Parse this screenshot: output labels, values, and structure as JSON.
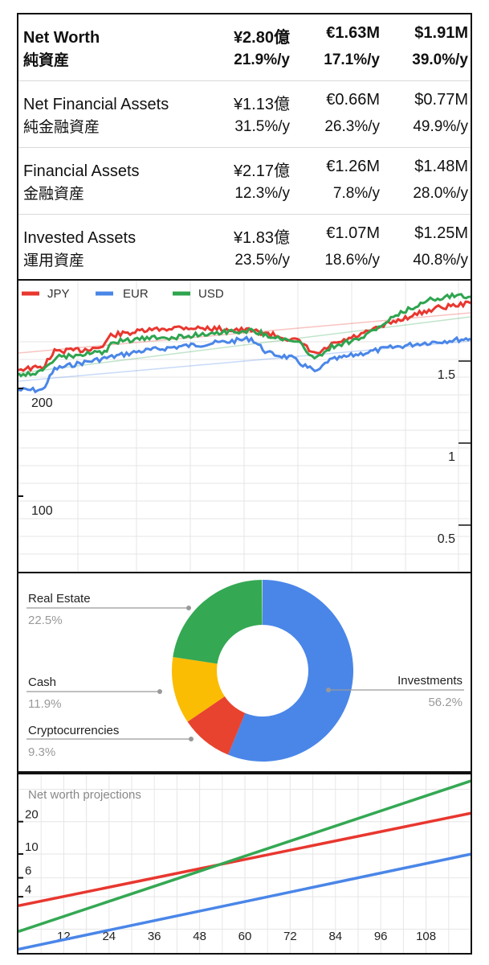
{
  "summary": {
    "rows": [
      {
        "en": "Net Worth",
        "ja": "純資産",
        "jpy": "¥2.80億",
        "eur": "€1.63M",
        "usd": "$1.91M",
        "jpy_pct": "21.9%/y",
        "eur_pct": "17.1%/y",
        "usd_pct": "39.0%/y"
      },
      {
        "en": "Net Financial Assets",
        "ja": "純金融資産",
        "jpy": "¥1.13億",
        "eur": "€0.66M",
        "usd": "$0.77M",
        "jpy_pct": "31.5%/y",
        "eur_pct": "26.3%/y",
        "usd_pct": "49.9%/y"
      },
      {
        "en": "Financial Assets",
        "ja": "金融資産",
        "jpy": "¥2.17億",
        "eur": "€1.26M",
        "usd": "$1.48M",
        "jpy_pct": "12.3%/y",
        "eur_pct": "7.8%/y",
        "usd_pct": "28.0%/y"
      },
      {
        "en": "Invested Assets",
        "ja": "運用資産",
        "jpy": "¥1.83億",
        "eur": "€1.07M",
        "usd": "$1.25M",
        "jpy_pct": "23.5%/y",
        "eur_pct": "18.6%/y",
        "usd_pct": "40.8%/y"
      }
    ]
  },
  "chart_data": [
    {
      "type": "line",
      "legend": [
        "JPY",
        "EUR",
        "USD"
      ],
      "legend_position": "top-left",
      "colors": {
        "JPY": "#e8372f",
        "EUR": "#4a86e8",
        "USD": "#2ea44f"
      },
      "left_axis_ticks": [
        "200",
        "100"
      ],
      "right_axis_ticks": [
        "1.5",
        "1",
        "0.5"
      ],
      "grid": true,
      "trendlines": true
    },
    {
      "type": "pie",
      "donut": true,
      "slices": [
        {
          "label": "Investments",
          "value": 56.2,
          "pct_text": "56.2%",
          "color": "#4a86e8"
        },
        {
          "label": "Cryptocurrencies",
          "value": 9.3,
          "pct_text": "9.3%",
          "color": "#e8432f"
        },
        {
          "label": "Cash",
          "value": 11.9,
          "pct_text": "11.9%",
          "color": "#fbbc04"
        },
        {
          "label": "Real Estate",
          "value": 22.5,
          "pct_text": "22.5%",
          "color": "#34a853"
        }
      ]
    },
    {
      "type": "line",
      "title": "Net worth projections",
      "x_ticks": [
        "12",
        "24",
        "36",
        "48",
        "60",
        "72",
        "84",
        "96",
        "108"
      ],
      "y_ticks": [
        "20",
        "10",
        "6",
        "4"
      ],
      "y_scale": "log",
      "series": [
        {
          "color": "#e8372f",
          "x": [
            0,
            120
          ],
          "y": [
            3.3,
            24
          ]
        },
        {
          "color": "#34a853",
          "x": [
            0,
            120
          ],
          "y": [
            1.9,
            48
          ]
        },
        {
          "color": "#4a86e8",
          "x": [
            0,
            120
          ],
          "y": [
            1.3,
            10
          ]
        }
      ],
      "grid": true
    }
  ]
}
